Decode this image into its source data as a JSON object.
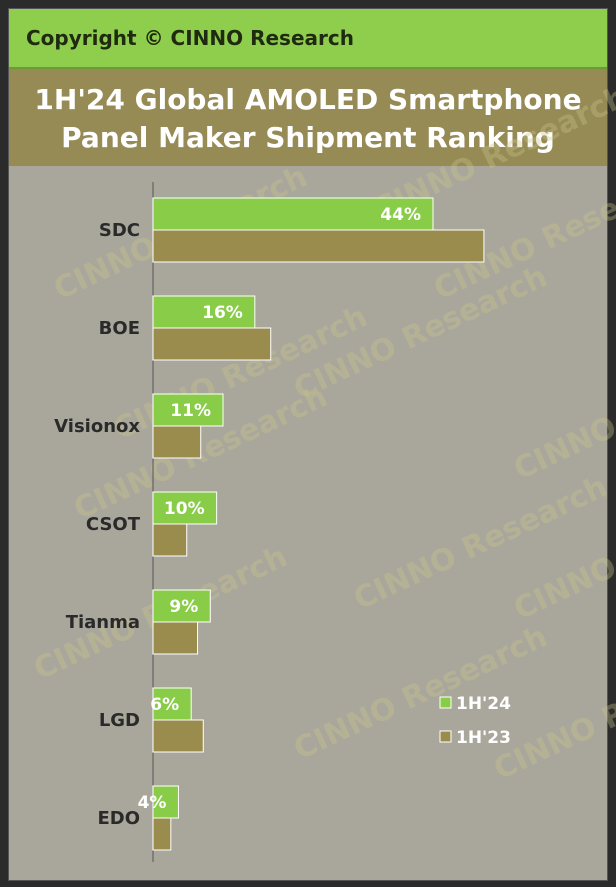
{
  "header": {
    "copyright": "Copyright © CINNO Research"
  },
  "watermark": "CINNO Research",
  "chart_data": {
    "type": "bar",
    "orientation": "horizontal",
    "title": "1H'24 Global AMOLED Smartphone Panel Maker Shipment Ranking",
    "categories": [
      "SDC",
      "BOE",
      "Visionox",
      "CSOT",
      "Tianma",
      "LGD",
      "EDO"
    ],
    "series": [
      {
        "name": "1H'24",
        "color": "#88cc48",
        "values": [
          44,
          16,
          11,
          10,
          9,
          6,
          4
        ],
        "labels": [
          "44%",
          "16%",
          "11%",
          "10%",
          "9%",
          "6%",
          "4%"
        ]
      },
      {
        "name": "1H'23",
        "color": "#9a8c4c",
        "values": [
          52,
          18.5,
          7.5,
          5.3,
          7,
          7.9,
          2.8
        ]
      }
    ],
    "xlim": [
      0,
      70
    ],
    "grid": false,
    "legend": "bottom-right"
  }
}
